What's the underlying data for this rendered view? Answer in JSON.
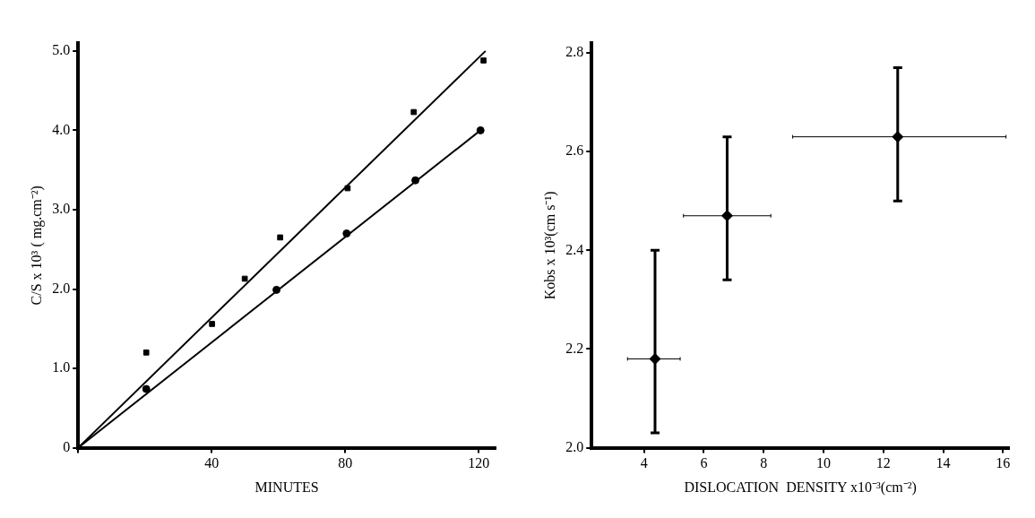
{
  "chart_data": [
    {
      "type": "scatter",
      "xlabel": "MINUTES",
      "ylabel": "C/S x 10³ ( mg.cm⁻²)",
      "xlim": [
        0,
        125
      ],
      "ylim": [
        0,
        5.1
      ],
      "xticks": [
        {
          "value": 0,
          "label": null
        },
        40,
        80,
        120
      ],
      "yticks": [
        0,
        {
          "value": 1,
          "label": "1.0"
        },
        {
          "value": 2,
          "label": "2.0"
        },
        {
          "value": 3,
          "label": "3.0"
        },
        {
          "value": 4,
          "label": "4.0"
        },
        {
          "value": 5,
          "label": "5.0"
        }
      ],
      "grid": false,
      "legend": false,
      "series": [
        {
          "type": "scatter",
          "marker": "square",
          "color": "#000000",
          "x": [
            20.4,
            40.1,
            49.9,
            60.5,
            80.7,
            100.5,
            121.4
          ],
          "values": [
            1.2,
            1.56,
            2.13,
            2.65,
            3.27,
            4.23,
            4.88
          ]
        },
        {
          "type": "scatter",
          "marker": "circle",
          "color": "#000000",
          "x": [
            20.4,
            59.4,
            80.4,
            101,
            120.5
          ],
          "values": [
            0.74,
            1.99,
            2.7,
            3.37,
            4.0
          ]
        },
        {
          "type": "line",
          "marker": "none",
          "line_style": "solid",
          "color": "#000000",
          "x": [
            0,
            122
          ],
          "values": [
            0,
            5.0
          ]
        },
        {
          "type": "line",
          "marker": "none",
          "line_style": "solid",
          "color": "#000000",
          "x": [
            0,
            120.5
          ],
          "values": [
            0,
            4.0
          ]
        }
      ]
    },
    {
      "type": "scatter",
      "xlabel": "DISLOCATION  DENSITY x10⁻³(cm⁻²)",
      "ylabel": "Kobs x 10³(cm s⁻¹)",
      "xlim": [
        2.25,
        16.2
      ],
      "ylim": [
        2.0,
        2.82
      ],
      "xticks": [
        4,
        6,
        8,
        10,
        12,
        14,
        16
      ],
      "yticks": [
        {
          "value": 2.0,
          "label": "2.0"
        },
        2.2,
        2.4,
        2.6,
        2.8
      ],
      "grid": false,
      "legend": false,
      "series": [
        {
          "type": "scatter",
          "marker": "diamond",
          "color": "#000000",
          "x": [
            4.37,
            6.78,
            12.48
          ],
          "values": [
            2.18,
            2.47,
            2.63
          ],
          "errors": [
            [
              2.03,
              2.4
            ],
            [
              2.34,
              2.63
            ],
            [
              2.5,
              2.77
            ]
          ],
          "xerrors": [
            [
              3.45,
              5.21
            ],
            [
              5.32,
              8.24
            ],
            [
              8.97,
              16.1
            ]
          ]
        }
      ]
    }
  ]
}
